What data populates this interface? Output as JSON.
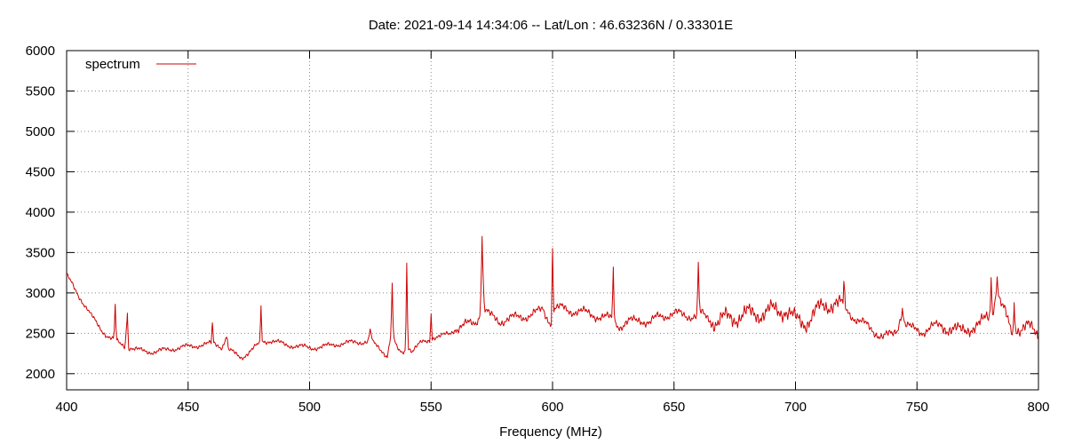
{
  "chart_data": {
    "type": "line",
    "title": "Date: 2021-09-14 14:34:06  --  Lat/Lon : 46.63236N / 0.33301E",
    "xlabel": "Frequency (MHz)",
    "ylabel": "",
    "xlim": [
      400,
      800
    ],
    "ylim": [
      1800,
      6000
    ],
    "xticks": [
      400,
      450,
      500,
      550,
      600,
      650,
      700,
      750,
      800
    ],
    "yticks": [
      2000,
      2500,
      3000,
      3500,
      4000,
      4500,
      5000,
      5500,
      6000
    ],
    "grid": true,
    "legend_position": "top-left",
    "series": [
      {
        "name": "spectrum",
        "color": "#cc0000",
        "points": [
          [
            400,
            3210
          ],
          [
            402,
            3120
          ],
          [
            404,
            3020
          ],
          [
            406,
            2920
          ],
          [
            408,
            2820
          ],
          [
            410,
            2720
          ],
          [
            412,
            2640
          ],
          [
            414,
            2560
          ],
          [
            416,
            2490
          ],
          [
            418,
            2440
          ],
          [
            419.5,
            2420
          ],
          [
            420,
            2860
          ],
          [
            420.5,
            2400
          ],
          [
            422,
            2370
          ],
          [
            424,
            2340
          ],
          [
            425,
            2750
          ],
          [
            425.5,
            2330
          ],
          [
            428,
            2300
          ],
          [
            432,
            2280
          ],
          [
            436,
            2270
          ],
          [
            440,
            2290
          ],
          [
            444,
            2310
          ],
          [
            448,
            2330
          ],
          [
            452,
            2340
          ],
          [
            456,
            2360
          ],
          [
            459.5,
            2370
          ],
          [
            460,
            2630
          ],
          [
            460.5,
            2380
          ],
          [
            464,
            2330
          ],
          [
            466,
            2480
          ],
          [
            466.5,
            2300
          ],
          [
            470,
            2230
          ],
          [
            472,
            2200
          ],
          [
            476,
            2290
          ],
          [
            479.5,
            2370
          ],
          [
            480,
            2840
          ],
          [
            480.5,
            2400
          ],
          [
            484,
            2410
          ],
          [
            490,
            2360
          ],
          [
            495,
            2340
          ],
          [
            500,
            2320
          ],
          [
            505,
            2330
          ],
          [
            510,
            2360
          ],
          [
            515,
            2380
          ],
          [
            520,
            2390
          ],
          [
            524,
            2400
          ],
          [
            525,
            2530
          ],
          [
            526,
            2380
          ],
          [
            530,
            2280
          ],
          [
            532,
            2220
          ],
          [
            533.5,
            2500
          ],
          [
            534,
            3120
          ],
          [
            534.5,
            2450
          ],
          [
            536,
            2300
          ],
          [
            538,
            2250
          ],
          [
            539.5,
            2300
          ],
          [
            540,
            3370
          ],
          [
            540.5,
            2350
          ],
          [
            542,
            2280
          ],
          [
            546,
            2380
          ],
          [
            548,
            2400
          ],
          [
            549.5,
            2420
          ],
          [
            550,
            2740
          ],
          [
            550.5,
            2450
          ],
          [
            554,
            2460
          ],
          [
            558,
            2500
          ],
          [
            560,
            2560
          ],
          [
            564,
            2600
          ],
          [
            568,
            2630
          ],
          [
            570,
            2720
          ],
          [
            570.6,
            3100
          ],
          [
            571,
            3700
          ],
          [
            571.6,
            3000
          ],
          [
            572,
            2800
          ],
          [
            574,
            2720
          ],
          [
            578,
            2650
          ],
          [
            582,
            2680
          ],
          [
            586,
            2700
          ],
          [
            590,
            2720
          ],
          [
            594,
            2760
          ],
          [
            596,
            2800
          ],
          [
            598,
            2690
          ],
          [
            599.5,
            2640
          ],
          [
            600,
            3550
          ],
          [
            600.5,
            2800
          ],
          [
            604,
            2810
          ],
          [
            608,
            2780
          ],
          [
            612,
            2760
          ],
          [
            616,
            2740
          ],
          [
            620,
            2700
          ],
          [
            624,
            2680
          ],
          [
            624.5,
            2680
          ],
          [
            625,
            3320
          ],
          [
            625.5,
            2650
          ],
          [
            628,
            2590
          ],
          [
            632,
            2640
          ],
          [
            636,
            2680
          ],
          [
            640,
            2620
          ],
          [
            644,
            2720
          ],
          [
            648,
            2730
          ],
          [
            652,
            2740
          ],
          [
            656,
            2720
          ],
          [
            659.5,
            2710
          ],
          [
            660,
            3380
          ],
          [
            660.5,
            2750
          ],
          [
            664,
            2690
          ],
          [
            668,
            2640
          ],
          [
            672,
            2690
          ],
          [
            676,
            2710
          ],
          [
            680,
            2730
          ],
          [
            684,
            2750
          ],
          [
            688,
            2760
          ],
          [
            692,
            2780
          ],
          [
            696,
            2800
          ],
          [
            700,
            2650
          ],
          [
            704,
            2640
          ],
          [
            708,
            2750
          ],
          [
            712,
            2840
          ],
          [
            716,
            2890
          ],
          [
            719.5,
            2820
          ],
          [
            720,
            3110
          ],
          [
            720.5,
            2800
          ],
          [
            724,
            2700
          ],
          [
            728,
            2620
          ],
          [
            732,
            2530
          ],
          [
            736,
            2460
          ],
          [
            740,
            2480
          ],
          [
            742,
            2560
          ],
          [
            744,
            2810
          ],
          [
            745,
            2620
          ],
          [
            748,
            2550
          ],
          [
            752,
            2520
          ],
          [
            756,
            2580
          ],
          [
            760,
            2590
          ],
          [
            764,
            2570
          ],
          [
            768,
            2510
          ],
          [
            772,
            2580
          ],
          [
            776,
            2600
          ],
          [
            780,
            2730
          ],
          [
            780.5,
            3190
          ],
          [
            781,
            2800
          ],
          [
            782,
            2900
          ],
          [
            783,
            3200
          ],
          [
            784,
            2900
          ],
          [
            786,
            2760
          ],
          [
            788,
            2580
          ],
          [
            789.5,
            2500
          ],
          [
            790,
            2880
          ],
          [
            790.5,
            2600
          ],
          [
            792,
            2560
          ],
          [
            796,
            2570
          ],
          [
            800,
            2500
          ]
        ]
      }
    ]
  }
}
